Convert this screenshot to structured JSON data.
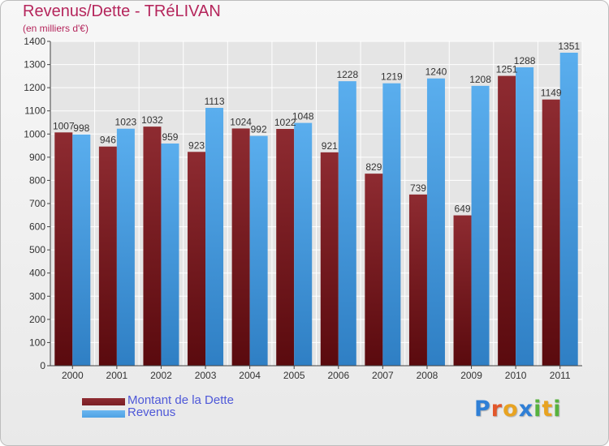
{
  "header": {
    "title": "Revenus/Dette - TRéLIVAN",
    "subtitle": "(en milliers d'€)"
  },
  "chart_data": {
    "type": "bar",
    "categories": [
      "2000",
      "2001",
      "2002",
      "2003",
      "2004",
      "2005",
      "2006",
      "2007",
      "2008",
      "2009",
      "2010",
      "2011"
    ],
    "series": [
      {
        "name": "Montant de la Dette",
        "color": "#7a1e24",
        "values": [
          1007,
          946,
          1032,
          923,
          1024,
          1022,
          921,
          829,
          739,
          649,
          1251,
          1149
        ]
      },
      {
        "name": "Revenus",
        "color": "#4fa2e4",
        "values": [
          998,
          1023,
          959,
          1113,
          992,
          1048,
          1228,
          1219,
          1240,
          1208,
          1288,
          1351
        ]
      }
    ],
    "yticks": [
      0,
      100,
      200,
      300,
      400,
      500,
      600,
      700,
      800,
      900,
      1000,
      1100,
      1200,
      1300,
      1400
    ],
    "ylim": [
      0,
      1400
    ],
    "grid": true,
    "legend_position": "bottom-left"
  },
  "legend": {
    "items": [
      {
        "label": "Montant de la Dette",
        "color": "#7a1e24"
      },
      {
        "label": "Revenus",
        "color": "#4fa2e4"
      }
    ]
  },
  "logo": {
    "letters": [
      "P",
      "r",
      "o",
      "x",
      "i",
      "t",
      "i"
    ],
    "colors": [
      "#2f7fd6",
      "#e2572b",
      "#e8a321",
      "#2f7fd6",
      "#57b23e",
      "#e8a321",
      "#57b23e"
    ]
  }
}
